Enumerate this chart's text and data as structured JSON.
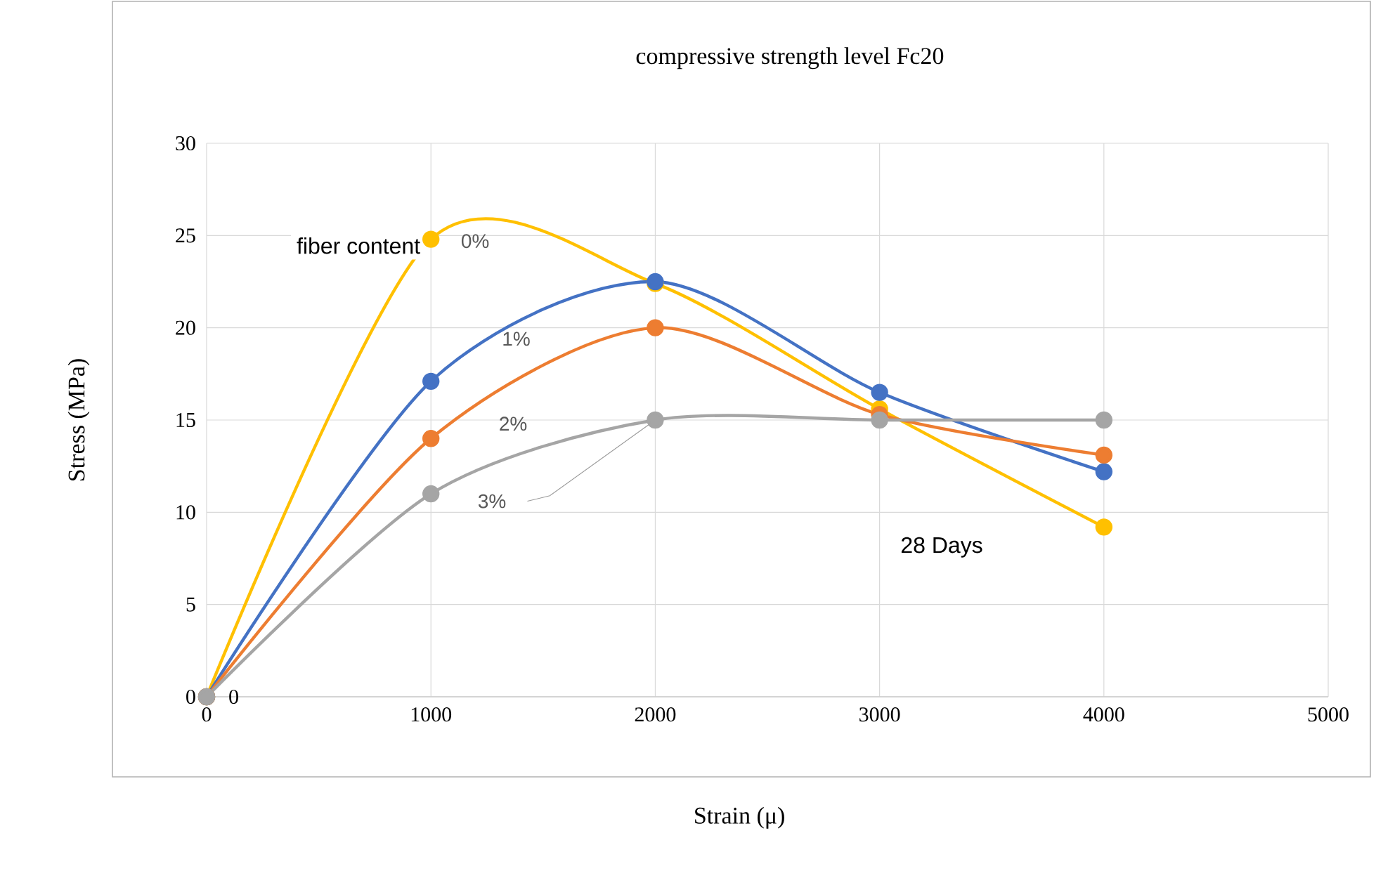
{
  "chart_data": {
    "type": "line",
    "title": "compressive strength level Fc20",
    "xlabel": "Strain (μ)",
    "ylabel": "Stress (MPa)",
    "x": [
      0,
      1000,
      2000,
      3000,
      4000
    ],
    "series": [
      {
        "name": "0%",
        "color": "#ffc000",
        "values": [
          0,
          24.8,
          22.4,
          15.6,
          9.2
        ]
      },
      {
        "name": "1%",
        "color": "#4472c4",
        "values": [
          0,
          17.1,
          22.5,
          16.5,
          12.2
        ]
      },
      {
        "name": "2%",
        "color": "#ed7d31",
        "values": [
          0,
          14.0,
          20.0,
          15.3,
          13.1
        ]
      },
      {
        "name": "3%",
        "color": "#a5a5a5",
        "values": [
          0,
          11.0,
          15.0,
          15.0,
          15.0
        ]
      }
    ],
    "xlim": [
      0,
      5000
    ],
    "xticks": [
      0,
      1000,
      2000,
      3000,
      4000,
      5000
    ],
    "ylim": [
      0,
      30
    ],
    "yticks": [
      0,
      5,
      10,
      15,
      20,
      25,
      30
    ],
    "grid": true,
    "marker": "circle",
    "line_style": "solid",
    "legend": false,
    "annotations": [
      "fiber content",
      "28 Days",
      {
        "text": "0",
        "x": 0,
        "y": 0
      }
    ]
  }
}
